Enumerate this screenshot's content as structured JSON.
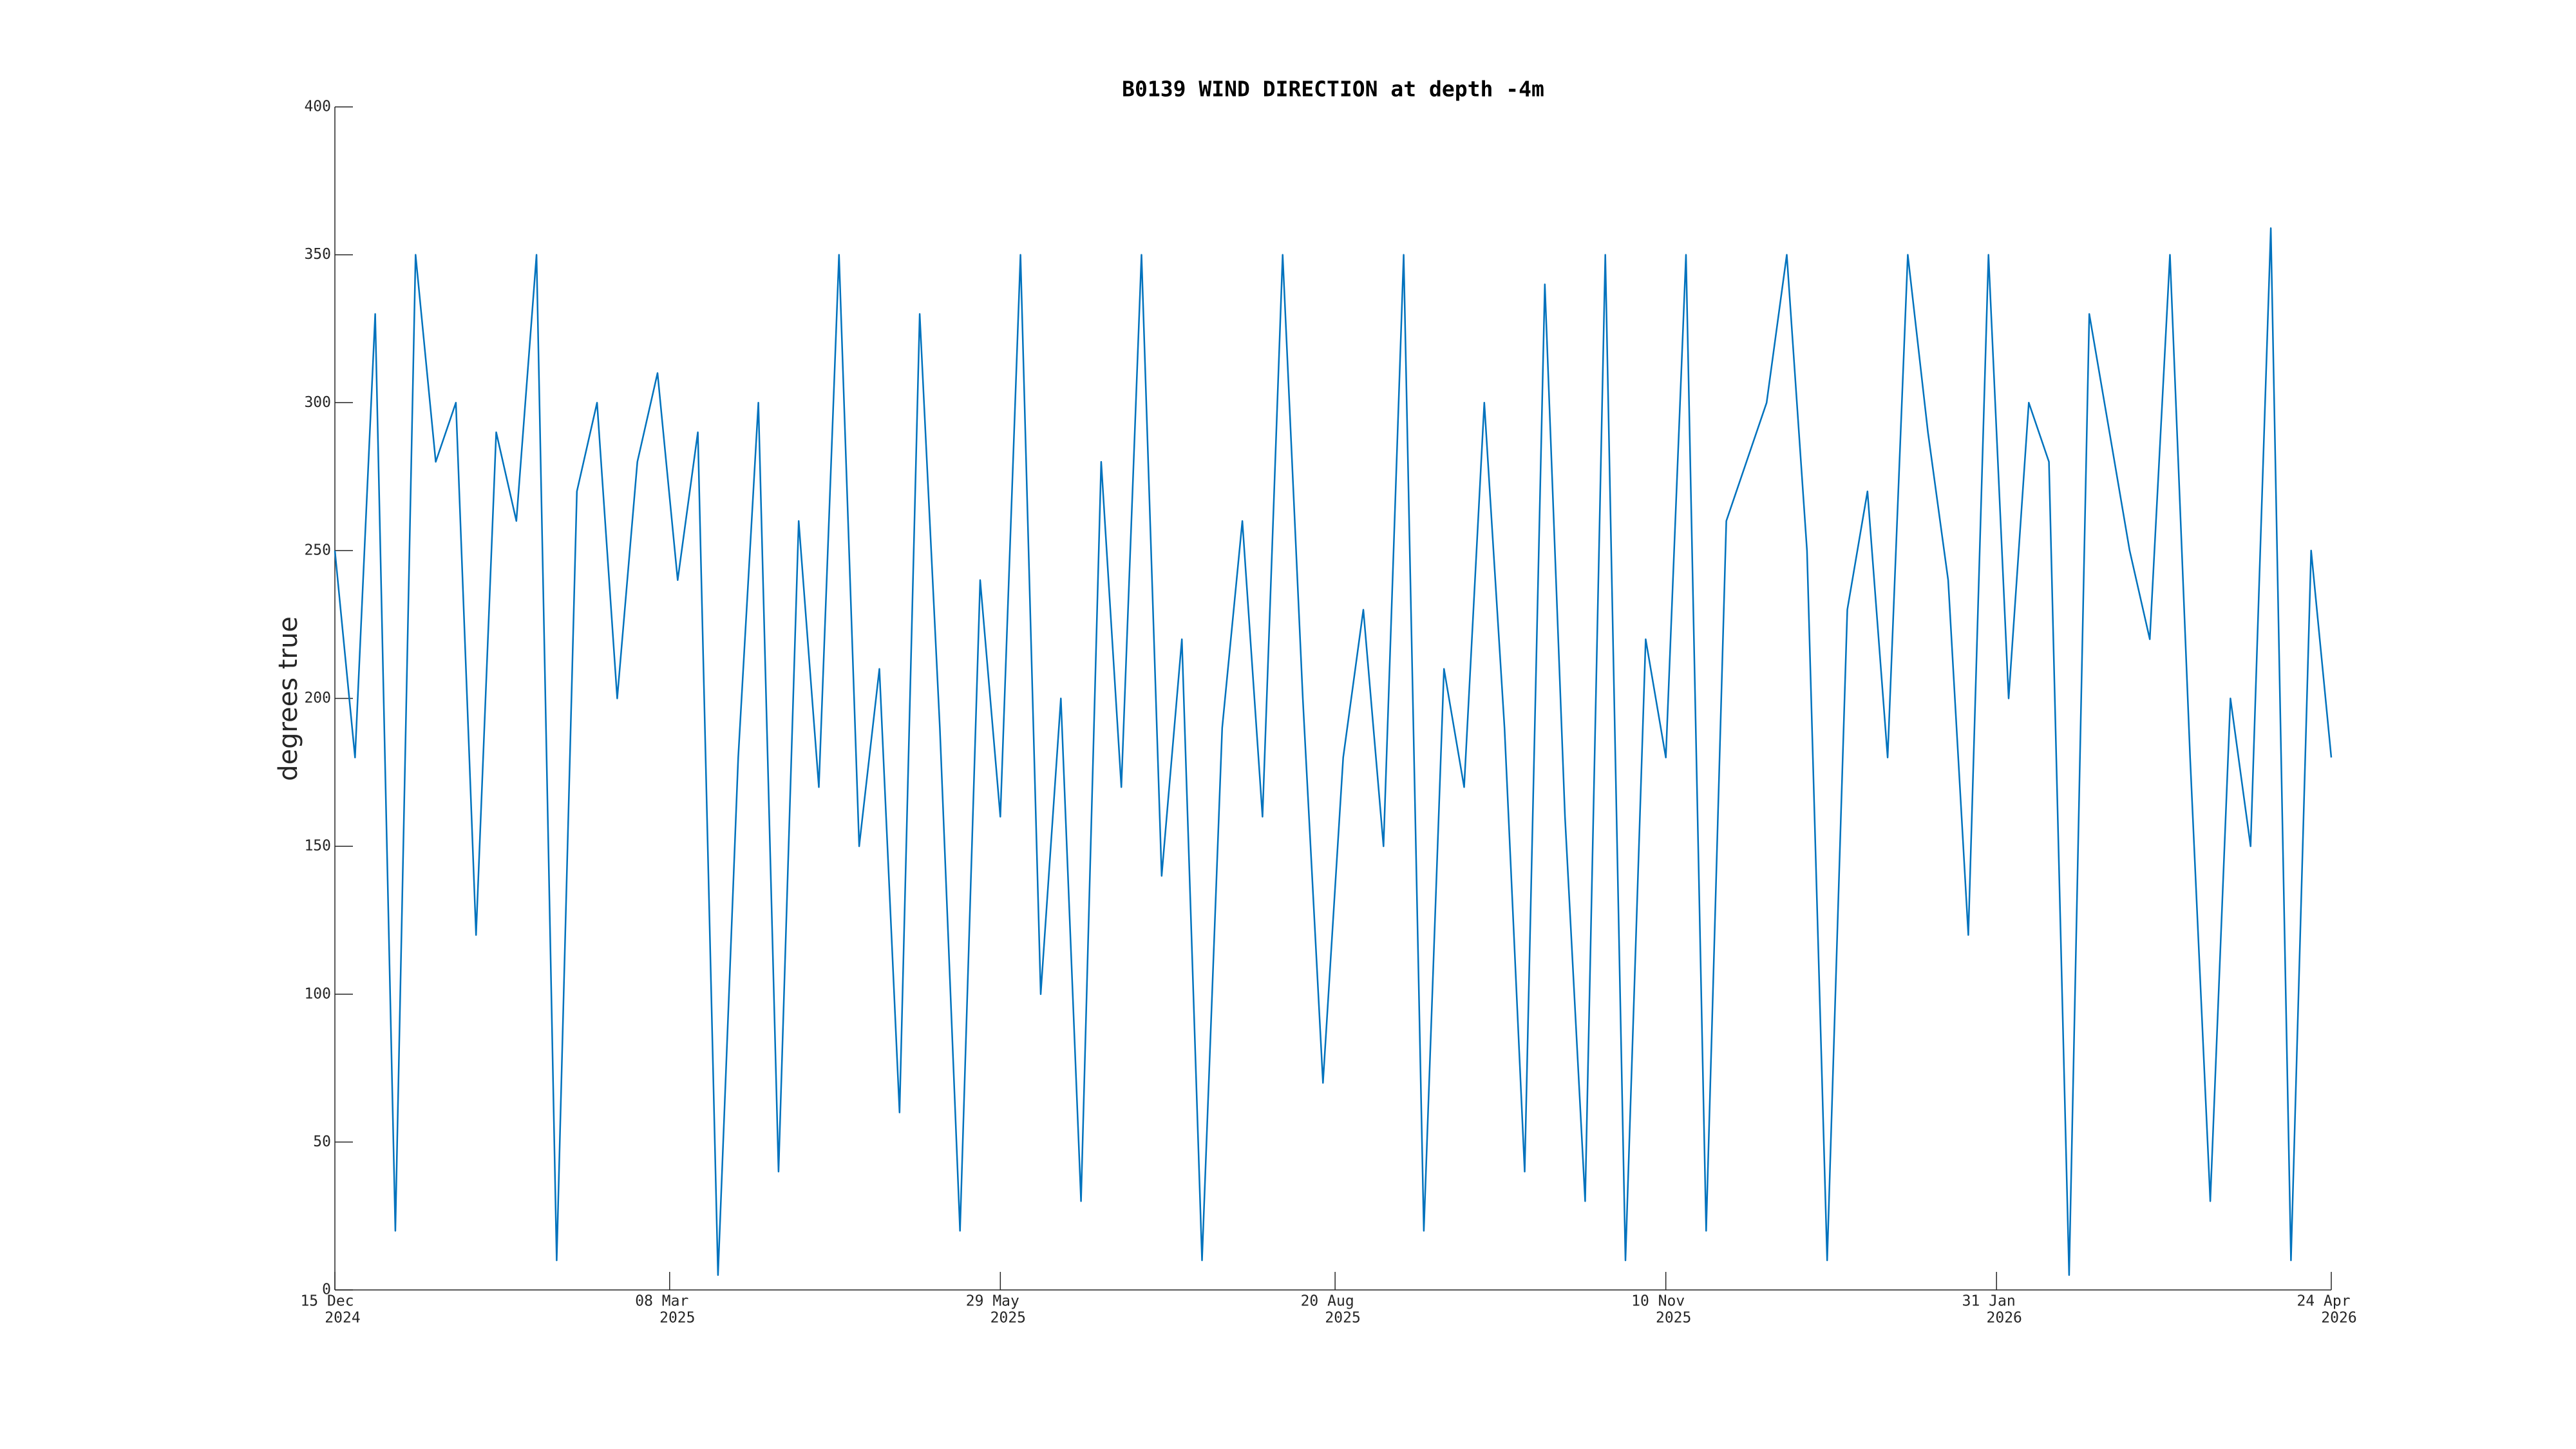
{
  "chart_data": {
    "type": "line",
    "title": "B0139 WIND DIRECTION at depth -4m",
    "y_label": "degrees true",
    "color": "#0072bd",
    "x": [
      "2024-12-15",
      "2024-12-20",
      "2024-12-25",
      "2024-12-30",
      "2025-01-04",
      "2025-01-09",
      "2025-01-14",
      "2025-01-19",
      "2025-01-24",
      "2025-01-29",
      "2025-02-03",
      "2025-02-08",
      "2025-02-13",
      "2025-02-18",
      "2025-02-23",
      "2025-02-28",
      "2025-03-05",
      "2025-03-10",
      "2025-03-15",
      "2025-03-20",
      "2025-03-25",
      "2025-03-30",
      "2025-04-04",
      "2025-04-09",
      "2025-04-14",
      "2025-04-19",
      "2025-04-24",
      "2025-04-29",
      "2025-05-04",
      "2025-05-09",
      "2025-05-14",
      "2025-05-19",
      "2025-05-24",
      "2025-05-29",
      "2025-06-03",
      "2025-06-08",
      "2025-06-13",
      "2025-06-18",
      "2025-06-23",
      "2025-06-28",
      "2025-07-03",
      "2025-07-08",
      "2025-07-13",
      "2025-07-18",
      "2025-07-23",
      "2025-07-28",
      "2025-08-02",
      "2025-08-07",
      "2025-08-12",
      "2025-08-17",
      "2025-08-22",
      "2025-08-27",
      "2025-09-01",
      "2025-09-06",
      "2025-09-11",
      "2025-09-16",
      "2025-09-21",
      "2025-09-26",
      "2025-10-01",
      "2025-10-06",
      "2025-10-11",
      "2025-10-16",
      "2025-10-21",
      "2025-10-26",
      "2025-10-31",
      "2025-11-05",
      "2025-11-10",
      "2025-11-15",
      "2025-11-20",
      "2025-11-25",
      "2025-11-30",
      "2025-12-05",
      "2025-12-10",
      "2025-12-15",
      "2025-12-20",
      "2025-12-25",
      "2025-12-30",
      "2026-01-04",
      "2026-01-09",
      "2026-01-14",
      "2026-01-19",
      "2026-01-24",
      "2026-01-29",
      "2026-02-03",
      "2026-02-08",
      "2026-02-13",
      "2026-02-18",
      "2026-02-23",
      "2026-02-28",
      "2026-03-05",
      "2026-03-10",
      "2026-03-15",
      "2026-03-20",
      "2026-03-25",
      "2026-03-30",
      "2026-04-04",
      "2026-04-09",
      "2026-04-14",
      "2026-04-19",
      "2026-04-24"
    ],
    "values": [
      250,
      180,
      330,
      20,
      350,
      280,
      300,
      120,
      290,
      260,
      350,
      10,
      270,
      300,
      200,
      280,
      310,
      240,
      290,
      5,
      180,
      300,
      40,
      260,
      170,
      350,
      150,
      210,
      60,
      330,
      190,
      20,
      240,
      160,
      350,
      100,
      200,
      30,
      280,
      170,
      350,
      140,
      220,
      10,
      190,
      260,
      160,
      350,
      200,
      70,
      180,
      230,
      150,
      350,
      20,
      210,
      170,
      300,
      190,
      40,
      340,
      160,
      30,
      350,
      10,
      220,
      180,
      350,
      20,
      260,
      280,
      300,
      350,
      250,
      10,
      230,
      270,
      180,
      350,
      290,
      240,
      120,
      350,
      200,
      300,
      280,
      5,
      330,
      290,
      250,
      220,
      350,
      180,
      30,
      200,
      150,
      359,
      10,
      250,
      180
    ],
    "xlim": [
      "2024-12-15",
      "2026-04-24"
    ],
    "xticks": [
      {
        "value": "2024-12-15",
        "label": [
          "15 Dec",
          "2024"
        ]
      },
      {
        "value": "2025-03-08",
        "label": [
          "08 Mar",
          "2025"
        ]
      },
      {
        "value": "2025-05-29",
        "label": [
          "29 May",
          "2025"
        ]
      },
      {
        "value": "2025-08-20",
        "label": [
          "20 Aug",
          "2025"
        ]
      },
      {
        "value": "2025-11-10",
        "label": [
          "10 Nov",
          "2025"
        ]
      },
      {
        "value": "2026-01-31",
        "label": [
          "31 Jan",
          "2026"
        ]
      },
      {
        "value": "2026-04-24",
        "label": [
          "24 Apr",
          "2026"
        ]
      }
    ],
    "ylim": [
      0,
      400
    ],
    "yticks": [
      0,
      50,
      100,
      150,
      200,
      250,
      300,
      350,
      400
    ]
  }
}
